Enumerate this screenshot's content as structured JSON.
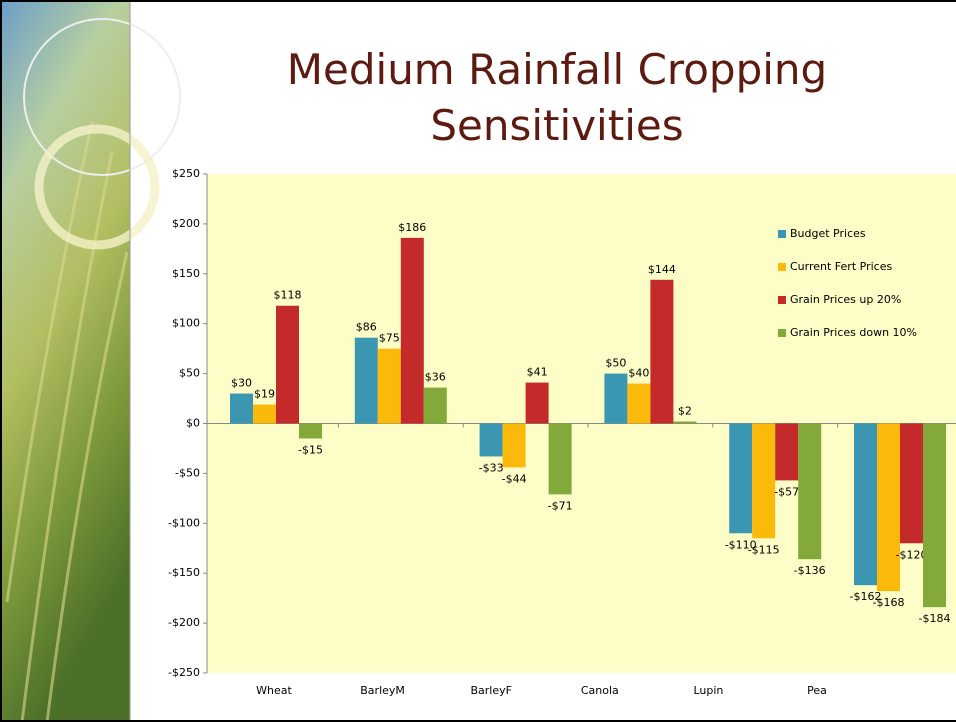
{
  "chart_data": {
    "type": "bar",
    "title": "Medium Rainfall Cropping Sensitivities",
    "categories": [
      "Wheat",
      "BarleyM",
      "BarleyF",
      "Canola",
      "Lupin",
      "Pea"
    ],
    "series": [
      {
        "name": "Budget Prices",
        "color": "#3b97b1",
        "values": [
          30,
          86,
          -33,
          50,
          -110,
          -162
        ],
        "value_labels": [
          "$30",
          "$86",
          "-$33",
          "$50",
          "-$110",
          "-$162"
        ]
      },
      {
        "name": "Current Fert Prices",
        "color": "#fbb90b",
        "values": [
          19,
          75,
          -44,
          40,
          -115,
          -168
        ],
        "value_labels": [
          "$19",
          "$75",
          "-$44",
          "$40",
          "-$115",
          "-$168"
        ]
      },
      {
        "name": "Grain Prices up 20%",
        "color": "#c52a2a",
        "values": [
          118,
          186,
          41,
          144,
          -57,
          -120
        ],
        "value_labels": [
          "$118",
          "$186",
          "$41",
          "$144",
          "-$57",
          "-$120"
        ]
      },
      {
        "name": "Grain Prices down 10%",
        "color": "#83a93a",
        "values": [
          -15,
          36,
          -71,
          2,
          -136,
          -184
        ],
        "value_labels": [
          "-$15",
          "$36",
          "-$71",
          "$2",
          "-$136",
          "-$184"
        ]
      }
    ],
    "ylim": [
      -250,
      250
    ],
    "yticks": [
      {
        "value": 250,
        "label": "$250"
      },
      {
        "value": 200,
        "label": "$200"
      },
      {
        "value": 150,
        "label": "$150"
      },
      {
        "value": 100,
        "label": "$100"
      },
      {
        "value": 50,
        "label": "$50"
      },
      {
        "value": 0,
        "label": "$0"
      },
      {
        "value": -50,
        "label": "-$50"
      },
      {
        "value": -100,
        "label": "-$100"
      },
      {
        "value": -150,
        "label": "-$150"
      },
      {
        "value": -200,
        "label": "-$200"
      },
      {
        "value": -250,
        "label": "-$250"
      }
    ],
    "grid": false,
    "legend": "right",
    "plot_background": "#fdfdc8"
  }
}
